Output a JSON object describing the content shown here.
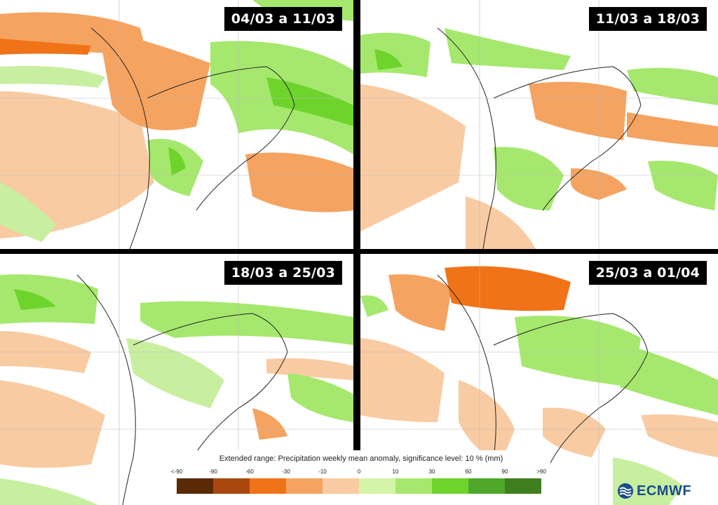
{
  "panels": [
    {
      "date_range": "04/03 a 11/03"
    },
    {
      "date_range": "11/03 a 18/03"
    },
    {
      "date_range": "18/03 a 25/03"
    },
    {
      "date_range": "25/03 a 01/04"
    }
  ],
  "legend": {
    "title": "Extended range: Precipitation weekly mean anomaly, significance level: 10 % (mm)",
    "ticks": [
      "<-90",
      "-90",
      "-60",
      "-30",
      "-10",
      "0",
      "10",
      "30",
      "60",
      "90",
      ">90"
    ],
    "colors": [
      "#5a2a06",
      "#a8480f",
      "#f07318",
      "#f5a360",
      "#f8cba2",
      "#d4f5a8",
      "#a6e86e",
      "#6ed42c",
      "#4fa82a",
      "#3f7f1f"
    ]
  },
  "colors": {
    "dry_strong": "#f07318",
    "dry_medium": "#f5a360",
    "dry_light": "#f8cba2",
    "wet_light": "#c8efa0",
    "wet_medium": "#a6e86e",
    "wet_strong": "#6ed42c"
  },
  "logo": {
    "text": "ECMWF",
    "icon": "ecmwf-logo-icon"
  }
}
